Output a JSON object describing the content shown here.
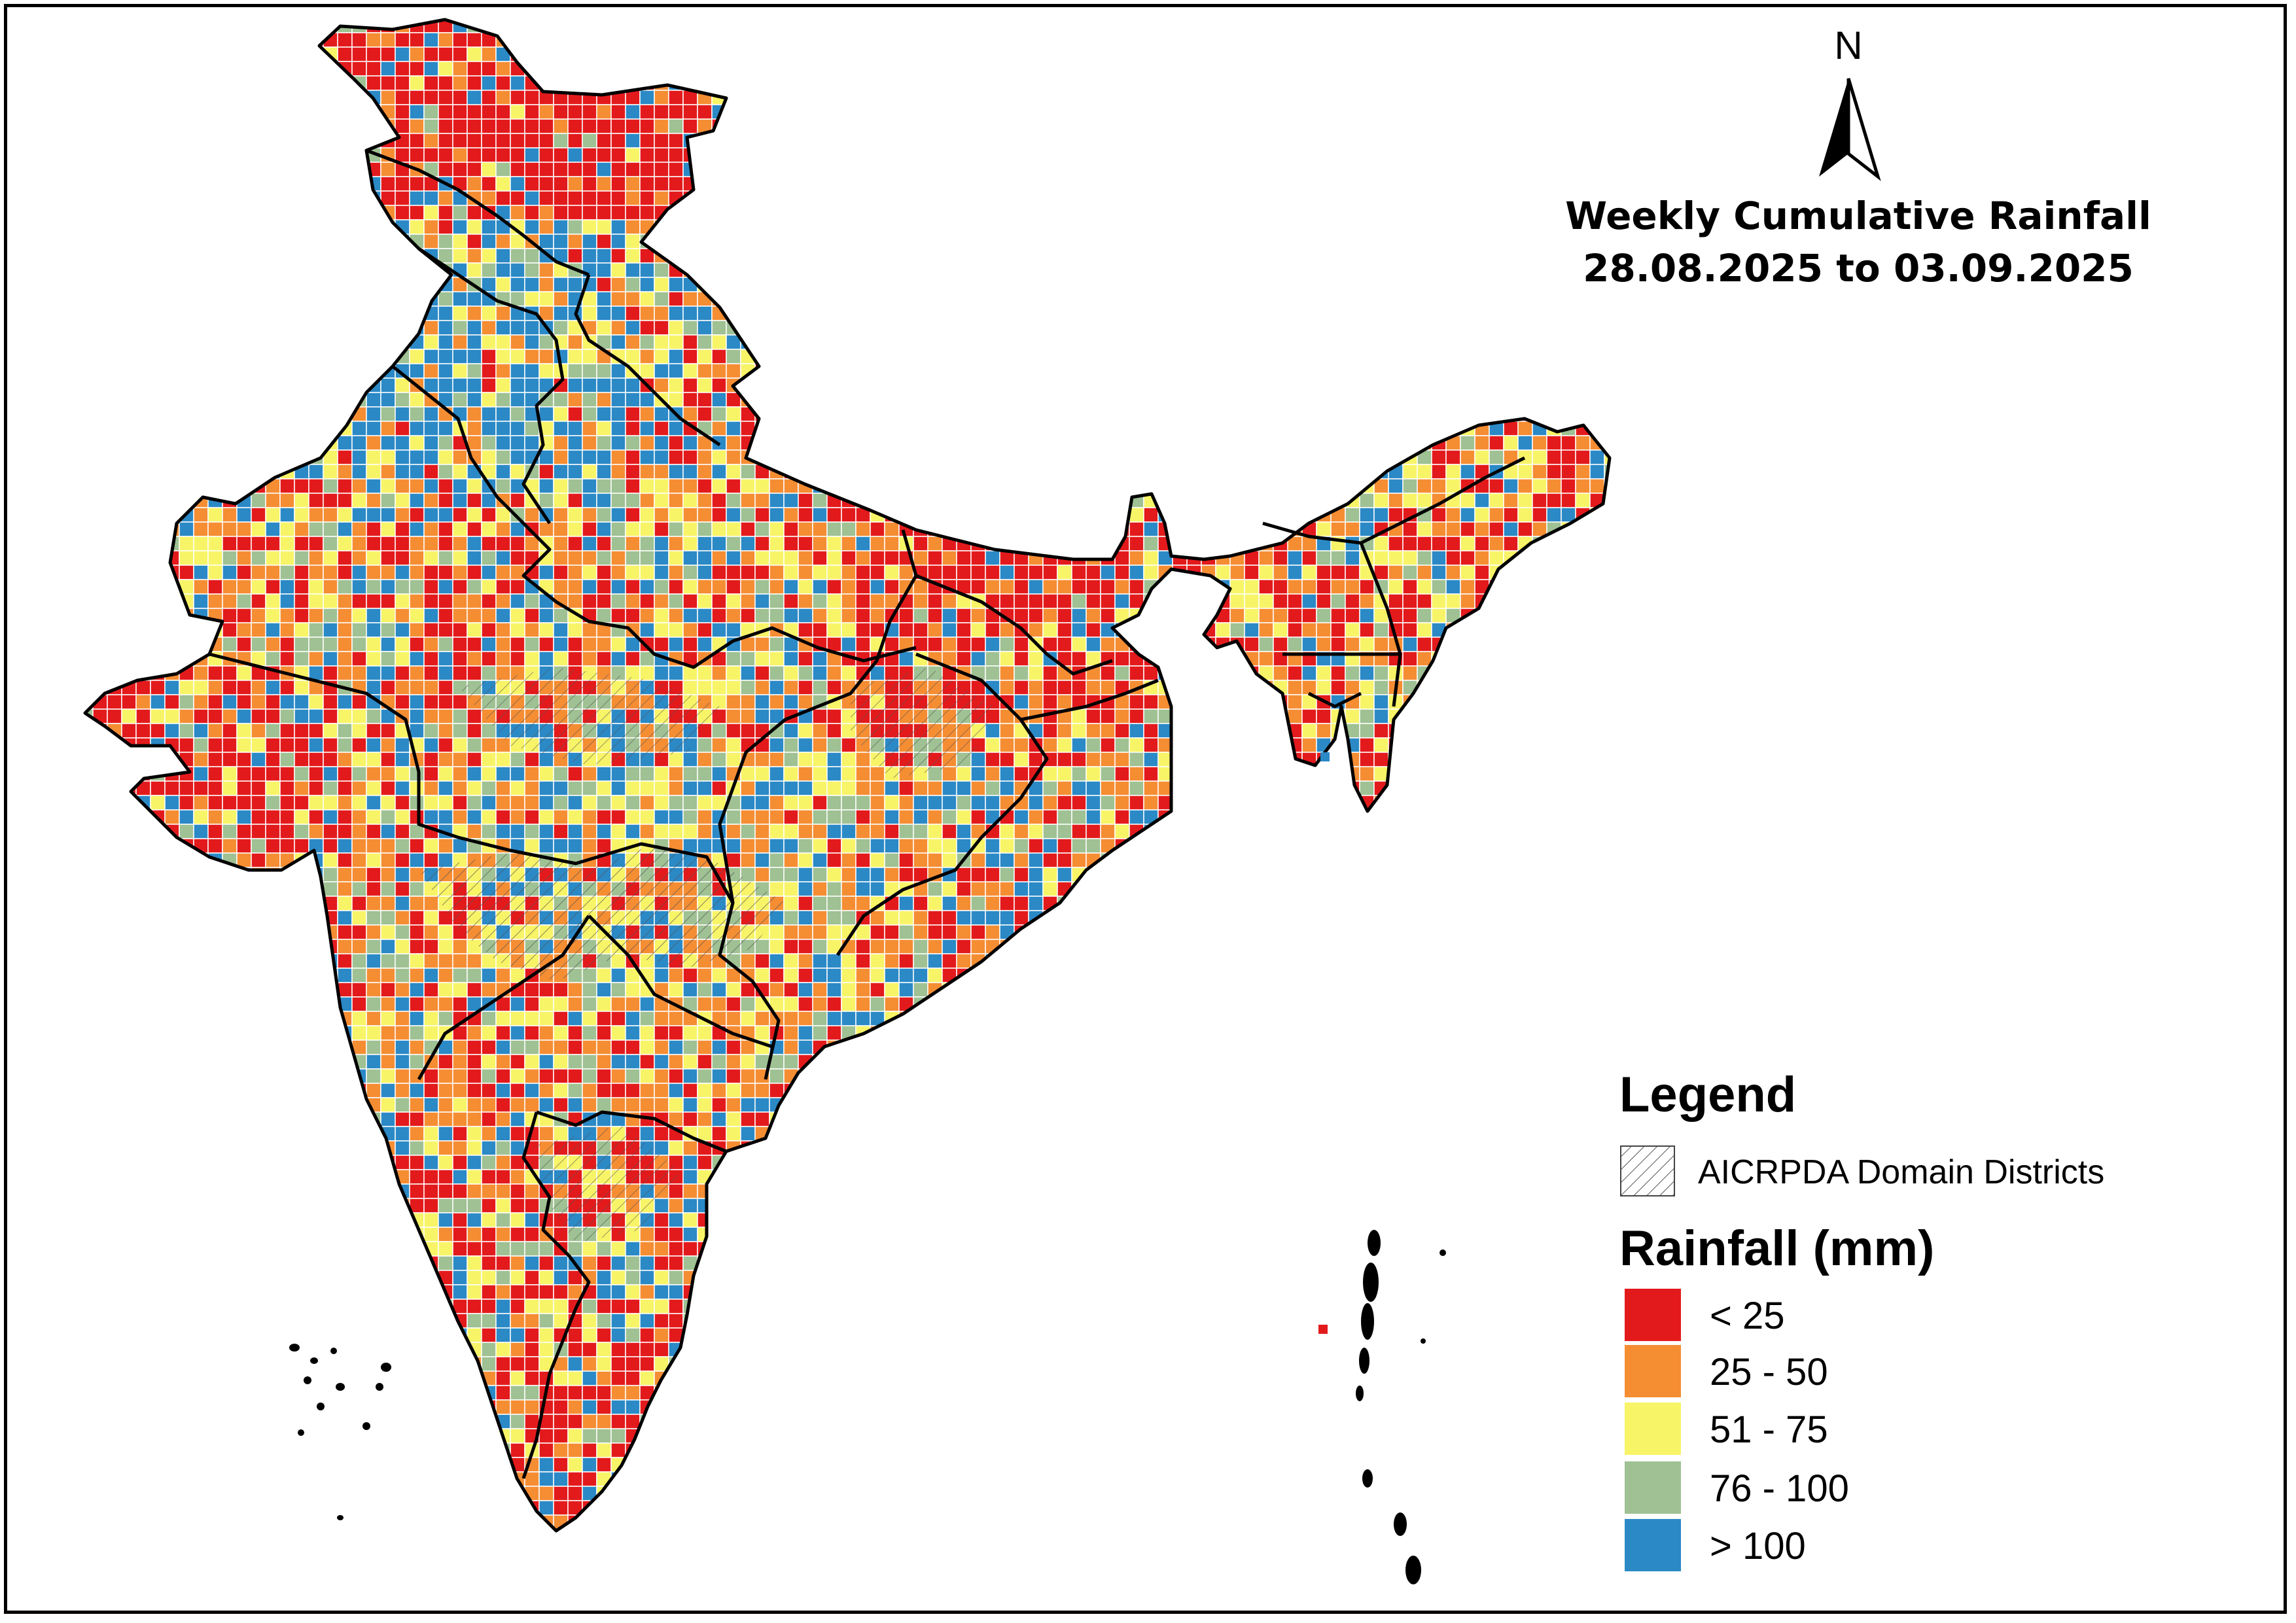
{
  "title": {
    "line1": "Weekly Cumulative Rainfall",
    "line2": "28.08.2025 to 03.09.2025"
  },
  "north_arrow": {
    "label": "N",
    "icon": "north-arrow-icon"
  },
  "legend": {
    "heading": "Legend",
    "domain_label": "AICRPDA Domain Districts",
    "rainfall_heading": "Rainfall (mm)",
    "classes": [
      {
        "label": "< 25",
        "color": "#e31a1c"
      },
      {
        "label": "25 - 50",
        "color": "#f58d33"
      },
      {
        "label": "51 - 75",
        "color": "#f8f467"
      },
      {
        "label": "76 - 100",
        "color": "#9fc193"
      },
      {
        "label": "> 100",
        "color": "#2b89c6"
      }
    ]
  },
  "colors": {
    "boundary": "#000000",
    "grid_line": "#ffffff"
  }
}
